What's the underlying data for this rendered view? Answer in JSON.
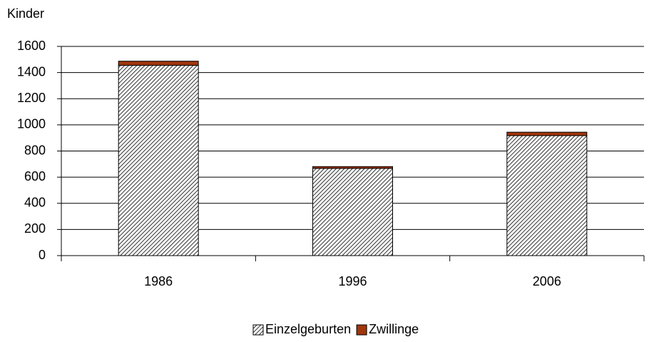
{
  "chart_data": {
    "type": "stacked_bar",
    "y_label": "Kinder",
    "categories": [
      "1986",
      "1996",
      "2006"
    ],
    "series": [
      {
        "name": "Einzelgeburten",
        "color": "#000000",
        "values": [
          1455,
          667,
          918
        ]
      },
      {
        "name": "Zwillinge",
        "color": "#a0360c",
        "values": [
          32,
          14,
          26
        ]
      }
    ],
    "ylim": [
      0,
      1600
    ],
    "yticks": [
      0,
      200,
      400,
      600,
      800,
      1000,
      1200,
      1400,
      1600
    ],
    "grid": true,
    "legend": "bottom"
  }
}
